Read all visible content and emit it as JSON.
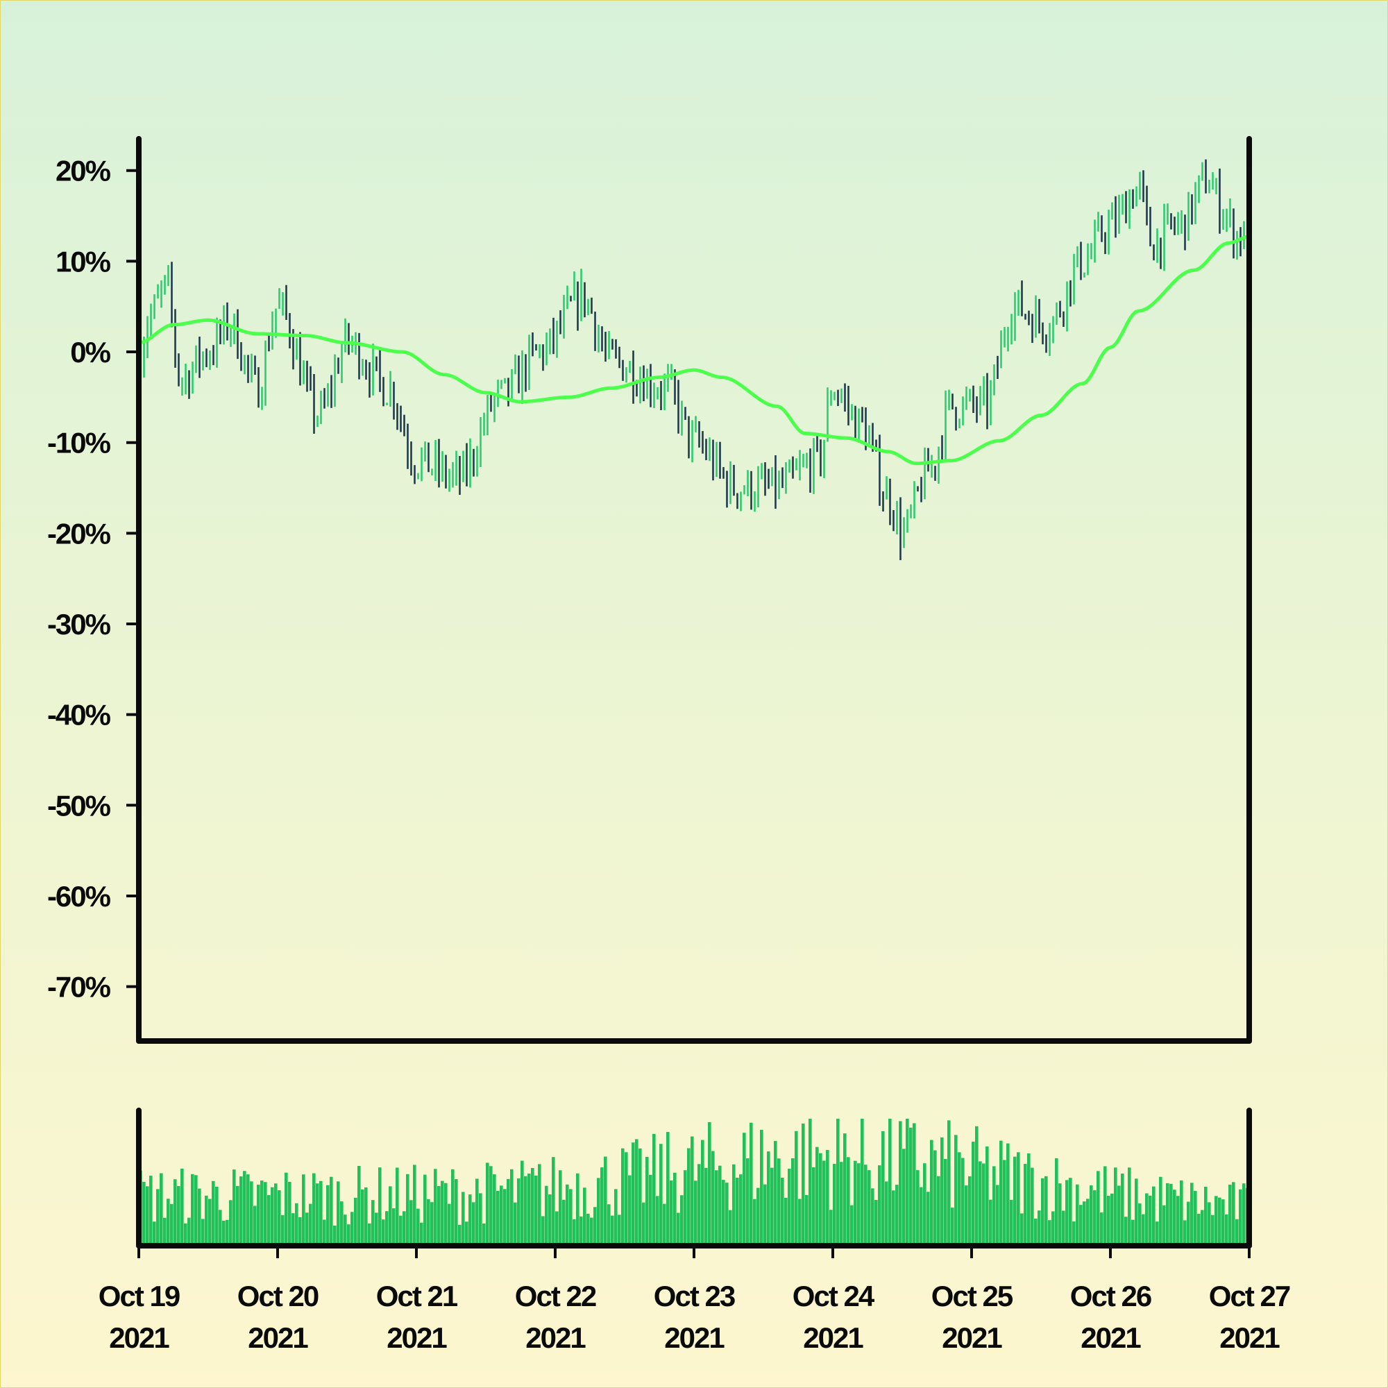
{
  "chart_data": {
    "type": "ohlc",
    "x_start": "Oct 19 2021",
    "x_end": "Oct 27 2021",
    "bars_per_day": 40,
    "x_ticks": [
      {
        "line1": "Oct 19",
        "line2": "2021"
      },
      {
        "line1": "Oct 20",
        "line2": "2021"
      },
      {
        "line1": "Oct 21",
        "line2": "2021"
      },
      {
        "line1": "Oct 22",
        "line2": "2021"
      },
      {
        "line1": "Oct 23",
        "line2": "2021"
      },
      {
        "line1": "Oct 24",
        "line2": "2021"
      },
      {
        "line1": "Oct 25",
        "line2": "2021"
      },
      {
        "line1": "Oct 26",
        "line2": "2021"
      },
      {
        "line1": "Oct 27",
        "line2": "2021"
      }
    ],
    "y_ticks": [
      "20%",
      "10%",
      "0%",
      "-10%",
      "-20%",
      "-30%",
      "-40%",
      "-50%",
      "-60%",
      "-70%"
    ],
    "y_tick_values": [
      20,
      10,
      0,
      -10,
      -20,
      -30,
      -40,
      -50,
      -60,
      -70
    ],
    "ylim": [
      -76,
      23.5
    ],
    "price_keypoints": [
      [
        0,
        0
      ],
      [
        0.08,
        4
      ],
      [
        0.2,
        7
      ],
      [
        0.3,
        -3
      ],
      [
        0.5,
        0
      ],
      [
        0.65,
        3
      ],
      [
        0.85,
        -4
      ],
      [
        1.0,
        5
      ],
      [
        1.3,
        -7
      ],
      [
        1.5,
        1
      ],
      [
        1.8,
        -4
      ],
      [
        2.0,
        -12
      ],
      [
        2.3,
        -14
      ],
      [
        2.6,
        -5
      ],
      [
        2.9,
        0
      ],
      [
        3.2,
        6
      ],
      [
        3.4,
        -1
      ],
      [
        3.8,
        -4
      ],
      [
        4.0,
        -10
      ],
      [
        4.3,
        -15
      ],
      [
        4.6,
        -15
      ],
      [
        4.9,
        -12
      ],
      [
        5.0,
        -4
      ],
      [
        5.2,
        -8
      ],
      [
        5.4,
        -16
      ],
      [
        5.5,
        -20
      ],
      [
        5.7,
        -13
      ],
      [
        5.85,
        -6
      ],
      [
        6.1,
        -6
      ],
      [
        6.3,
        5
      ],
      [
        6.55,
        3
      ],
      [
        6.8,
        10
      ],
      [
        7.0,
        14
      ],
      [
        7.2,
        18
      ],
      [
        7.3,
        12
      ],
      [
        7.5,
        14
      ],
      [
        7.7,
        19
      ],
      [
        7.8,
        16
      ],
      [
        7.9,
        13
      ],
      [
        8.0,
        12
      ]
    ],
    "ma_keypoints": [
      [
        0,
        1
      ],
      [
        0.25,
        3
      ],
      [
        0.5,
        3.5
      ],
      [
        0.85,
        2
      ],
      [
        1.2,
        1.8
      ],
      [
        1.5,
        1
      ],
      [
        1.9,
        0
      ],
      [
        2.2,
        -2.5
      ],
      [
        2.5,
        -4.5
      ],
      [
        2.75,
        -5.5
      ],
      [
        3.1,
        -5
      ],
      [
        3.4,
        -4
      ],
      [
        3.75,
        -2.8
      ],
      [
        4.0,
        -2
      ],
      [
        4.2,
        -2.8
      ],
      [
        4.6,
        -6
      ],
      [
        4.8,
        -9
      ],
      [
        5.1,
        -9.5
      ],
      [
        5.4,
        -11
      ],
      [
        5.6,
        -12.3
      ],
      [
        5.85,
        -12
      ],
      [
        6.2,
        -9.8
      ],
      [
        6.5,
        -7
      ],
      [
        6.8,
        -3.5
      ],
      [
        7.0,
        0.5
      ],
      [
        7.2,
        4.5
      ],
      [
        7.6,
        9
      ],
      [
        7.85,
        12
      ],
      [
        8.0,
        12.7
      ]
    ],
    "volume_range": [
      0.1,
      1.0
    ],
    "series": [
      {
        "values": "bars_up",
        "color": "#2ecc71"
      },
      {
        "values": "bars_down",
        "color": "#1f3a4a"
      },
      {
        "values": "moving_average",
        "color": "#4cff4c"
      },
      {
        "values": "volume",
        "color": "#22c05a"
      }
    ],
    "grid": false
  }
}
